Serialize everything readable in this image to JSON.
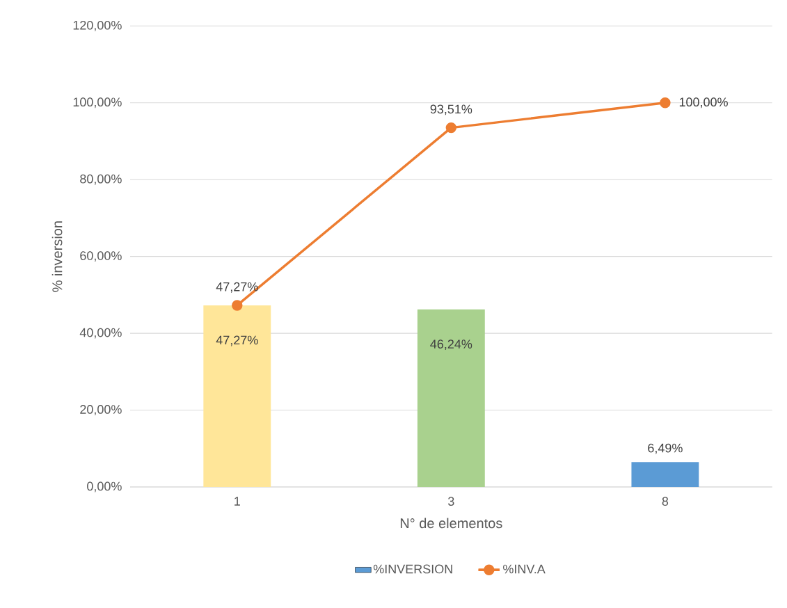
{
  "chart_data": {
    "type": "bar",
    "xlabel": "N° de elementos",
    "ylabel": "% inversion",
    "categories": [
      "1",
      "3",
      "8"
    ],
    "series": [
      {
        "name": "%INVERSION",
        "color": "#5b9bd5",
        "colors": [
          "#ffe699",
          "#a9d18e",
          "#5b9bd5"
        ],
        "values": [
          47.27,
          46.24,
          6.49
        ],
        "value_labels": [
          "47,27%",
          "46,24%",
          "6,49%"
        ]
      },
      {
        "name": "%INV.A",
        "type": "line",
        "color": "#ed7d31",
        "marker": "circle",
        "values": [
          47.27,
          93.51,
          100
        ],
        "value_labels": [
          "47,27%",
          "93,51%",
          "100,00%"
        ]
      }
    ],
    "ylim": [
      0,
      120
    ],
    "yticks": [
      {
        "value": 0,
        "label": "0,00%"
      },
      {
        "value": 20,
        "label": "20,00%"
      },
      {
        "value": 40,
        "label": "40,00%"
      },
      {
        "value": 60,
        "label": "60,00%"
      },
      {
        "value": 80,
        "label": "80,00%"
      },
      {
        "value": 100,
        "label": "100,00%"
      },
      {
        "value": 120,
        "label": "120,00%"
      }
    ],
    "grid": "y",
    "legend": "bottom"
  }
}
